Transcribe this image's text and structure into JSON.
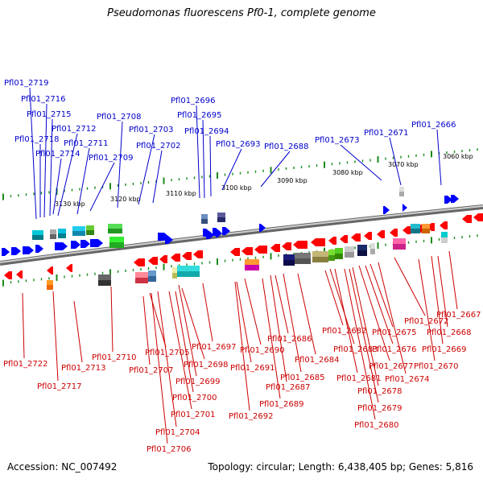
{
  "title": "Pseudomonas fluorescens Pf0-1, complete genome",
  "accession_text": "Accession: NC_007492",
  "topology_text": "Topology: circular; Length: 6,438,405 bp; Genes: 5,816",
  "colors": {
    "forward_label": "#0000cc",
    "reverse_label": "#cc0000",
    "forward_gene": "#0000ff",
    "reverse_gene": "#ff0000",
    "backbone": "#888888",
    "tick": "#1a8a1a"
  },
  "kbp_labels": [
    "3060 kbp",
    "3070 kbp",
    "3080 kbp",
    "3090 kbp",
    "3100 kbp",
    "3110 kbp",
    "3120 kbp",
    "3130 kbp"
  ],
  "forward_labels": [
    "Pfl01_2719",
    "Pfl01_2716",
    "Pfl01_2715",
    "Pfl01_2712",
    "Pfl01_2718",
    "Pfl01_2711",
    "Pfl01_2714",
    "Pfl01_2709",
    "Pfl01_2708",
    "Pfl01_2703",
    "Pfl01_2702",
    "Pfl01_2696",
    "Pfl01_2695",
    "Pfl01_2694",
    "Pfl01_2693",
    "Pfl01_2688",
    "Pfl01_2673",
    "Pfl01_2671",
    "Pfl01_2666"
  ],
  "reverse_labels": [
    "Pfl01_2722",
    "Pfl01_2717",
    "Pfl01_2713",
    "Pfl01_2710",
    "Pfl01_2707",
    "Pfl01_2705",
    "Pfl01_2704",
    "Pfl01_2706",
    "Pfl01_2699",
    "Pfl01_2698",
    "Pfl01_2700",
    "Pfl01_2701",
    "Pfl01_2697",
    "Pfl01_2691",
    "Pfl01_2690",
    "Pfl01_2692",
    "Pfl01_2689",
    "Pfl01_2687",
    "Pfl01_2686",
    "Pfl01_2685",
    "Pfl01_2684",
    "Pfl01_2683",
    "Pfl01_2682",
    "Pfl01_2681",
    "Pfl01_2680",
    "Pfl01_2679",
    "Pfl01_2678",
    "Pfl01_2677",
    "Pfl01_2676",
    "Pfl01_2675",
    "Pfl01_2674",
    "Pfl01_2672",
    "Pfl01_2670",
    "Pfl01_2669",
    "Pfl01_2668",
    "Pfl01_2667"
  ]
}
